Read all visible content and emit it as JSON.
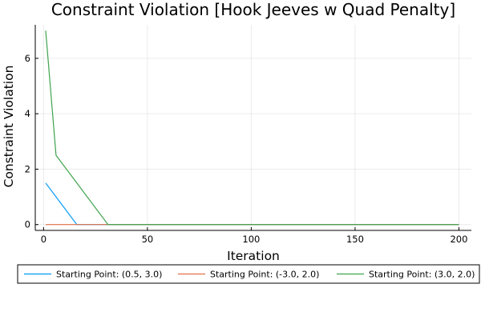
{
  "chart_data": {
    "type": "line",
    "title": "Constraint Violation [Hook Jeeves w Quad Penalty]",
    "xlabel": "Iteration",
    "ylabel": "Constraint Violation",
    "xlim": [
      -4,
      206
    ],
    "ylim": [
      -0.21,
      7.21
    ],
    "xticks": [
      0,
      50,
      100,
      150,
      200
    ],
    "yticks": [
      0,
      2,
      4,
      6
    ],
    "grid": true,
    "legend_position": "bottom",
    "series": [
      {
        "name": "Starting Point: (0.5, 3.0)",
        "color": "#009AFA",
        "x": [
          1,
          16,
          200
        ],
        "y": [
          1.5,
          0,
          0
        ]
      },
      {
        "name": "Starting Point: (-3.0, 2.0)",
        "color": "#E26F46",
        "x": [
          1,
          200
        ],
        "y": [
          0,
          0
        ]
      },
      {
        "name": "Starting Point: (3.0, 2.0)",
        "color": "#3EA44E",
        "x": [
          1,
          6,
          31,
          200
        ],
        "y": [
          7.0,
          2.5,
          0,
          0
        ]
      }
    ]
  }
}
